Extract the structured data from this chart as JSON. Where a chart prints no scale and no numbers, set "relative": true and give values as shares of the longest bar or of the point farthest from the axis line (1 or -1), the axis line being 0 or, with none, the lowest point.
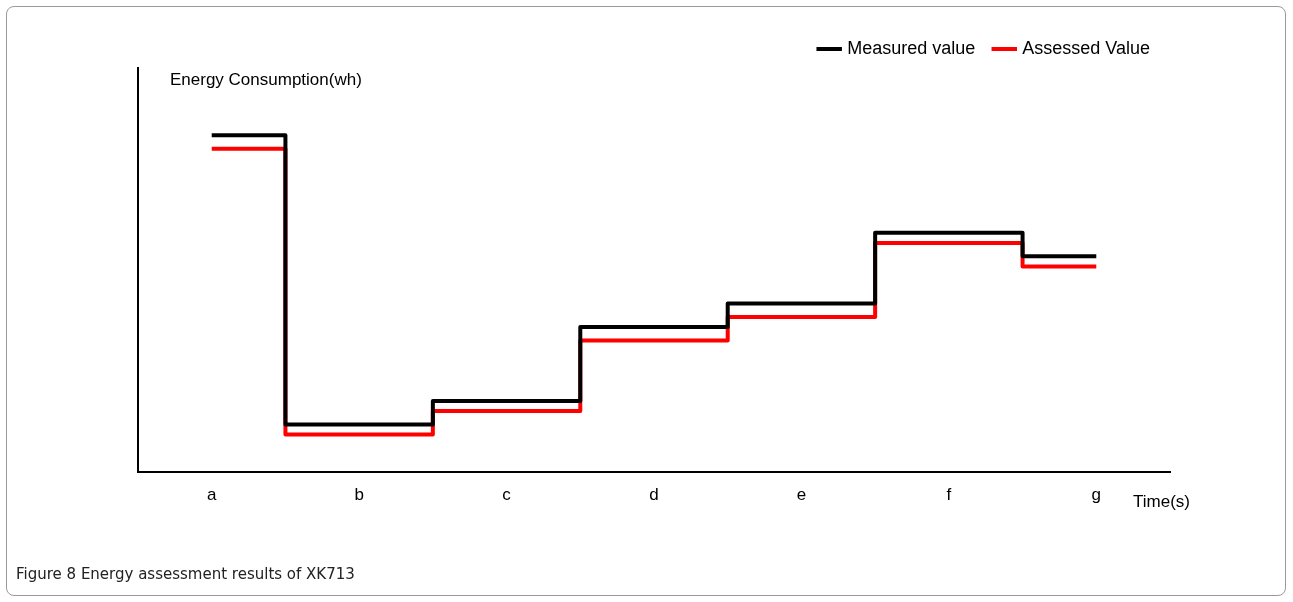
{
  "chart_data": {
    "type": "step",
    "relative": true,
    "xlabel": "Time(s)",
    "ylabel": "Energy Consumption(wh)",
    "categories": [
      "a",
      "b",
      "c",
      "d",
      "e",
      "f",
      "g"
    ],
    "series": [
      {
        "name": "Measured value",
        "color": "#000000",
        "values": [
          1,
          0.14,
          0.21,
          0.43,
          0.5,
          0.71,
          0.64
        ]
      },
      {
        "name": "Assessed Value",
        "color": "#ff0000",
        "values": [
          0.96,
          0.11,
          0.18,
          0.39,
          0.46,
          0.68,
          0.61
        ]
      }
    ],
    "legend": "top right",
    "grid": false,
    "marker": "none",
    "line_style": "solid",
    "annotations": [
      "Figure 8  Energy assessment results of XK713"
    ]
  }
}
